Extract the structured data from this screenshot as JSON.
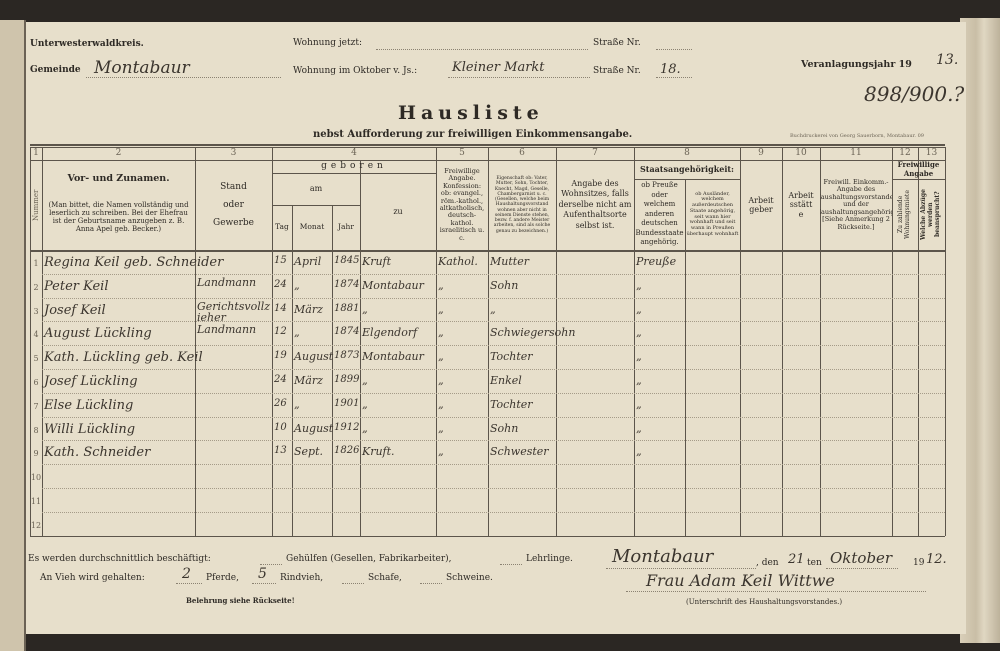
{
  "header": {
    "district": "Unterwesterwaldkreis.",
    "municipality_label": "Gemeinde",
    "municipality_value": "Montabaur",
    "current_residence_label": "Wohnung jetzt:",
    "current_street_label": "Straße Nr.",
    "october_residence_label": "Wohnung im Oktober v. Js.:",
    "october_residence_value": "Kleiner Markt",
    "october_street_label": "Straße Nr.",
    "october_street_value": "18.",
    "assessment_year_label": "Veranlagungsjahr 19",
    "assessment_year_value": "13.",
    "margin_note": "898/900.?",
    "title": "Hausliste",
    "subtitle": "nebst Aufforderung zur freiwilligen Einkommensangabe.",
    "printer": "Buchdruckerei von Georg Sauerborn, Montabaur. 09"
  },
  "columns": {
    "numbers": [
      "1",
      "2",
      "3",
      "4",
      "5",
      "6",
      "7",
      "8",
      "9",
      "10",
      "11",
      "12",
      "13"
    ],
    "c1": "Nummer",
    "c2_title": "Vor- und Zunamen.",
    "c2_note": "(Man bittet, die Namen vollständig und leserlich zu schreiben. Bei der Ehefrau ist der Geburtsname anzugeben z. B. Anna Apel geb. Becker.)",
    "c3": "Stand oder Gewerbe",
    "c4": "geboren",
    "c4_am": "am",
    "c4_tag": "Tag",
    "c4_monat": "Monat",
    "c4_jahr": "Jahr",
    "c4_zu": "zu",
    "c5": "Freiwillige Angabe. Konfession: ob: evangel., röm.-kathol., altkatholisch, deutsch-kathol. israelitisch u. c.",
    "c6": "Eigenschaft ob: Vater, Mutter, Sohn, Tochter, Knecht, Magd, Geselle, Chambergarnist u. c. (Gesellen, welche beim Haushaltungsvorstand wohnen aber nicht in seinem Dienste stehen, bezw. f. andere Meister arbeiten, sind als solche genau zu bezeichnen.)",
    "c7": "Angabe des Wohnsitzes, falls derselbe nicht am Aufenthaltsorte selbst ist.",
    "c8_title": "Staatsangehörigkeit:",
    "c8a": "ob Preuße oder welchem anderen deutschen Bundesstaate angehörig.",
    "c8b": "ob Ausländer, welchem außerdeutschen Staate angehörig, seit wann hier wohnhaft und seit wann in Preußen überhaupt wohnhaft",
    "c9": "Arbeitgeber",
    "c10": "Arbeitsstätte",
    "c11": "Freiwill. Einkomm.-Angabe des Haushaltungsvorstandes und der Haushaltungsangehörig. [Siehe Anmerkung 2 Rückseite.]",
    "c12_13_title": "Freiwillige Angabe",
    "c12": "Zu zahlende Wohnungsmiete",
    "c13": "Welche Abzüge werden beansprucht?"
  },
  "rows": [
    {
      "num": "1",
      "name": "Regina Keil geb. Schneider",
      "stand": "",
      "tag": "15",
      "monat": "April",
      "jahr": "1845",
      "zu": "Kruft",
      "konf": "Kathol.",
      "eigen": "Mutter",
      "staat": "Preuße"
    },
    {
      "num": "2",
      "name": "Peter Keil",
      "stand": "Landmann",
      "tag": "24",
      "monat": "„",
      "jahr": "1874",
      "zu": "Montabaur",
      "konf": "„",
      "eigen": "Sohn",
      "staat": "„"
    },
    {
      "num": "3",
      "name": "Josef Keil",
      "stand": "Gerichtsvollzieher",
      "tag": "14",
      "monat": "März",
      "jahr": "1881",
      "zu": "„",
      "konf": "„",
      "eigen": "„",
      "staat": "„"
    },
    {
      "num": "4",
      "name": "August Lückling",
      "stand": "Landmann",
      "tag": "12",
      "monat": "„",
      "jahr": "1874",
      "zu": "Elgendorf",
      "konf": "„",
      "eigen": "Schwiegersohn",
      "staat": "„"
    },
    {
      "num": "5",
      "name": "Kath. Lückling geb. Keil",
      "stand": "",
      "tag": "19",
      "monat": "August",
      "jahr": "1873",
      "zu": "Montabaur",
      "konf": "„",
      "eigen": "Tochter",
      "staat": "„"
    },
    {
      "num": "6",
      "name": "Josef Lückling",
      "stand": "",
      "tag": "24",
      "monat": "März",
      "jahr": "1899",
      "zu": "„",
      "konf": "„",
      "eigen": "Enkel",
      "staat": "„"
    },
    {
      "num": "7",
      "name": "Else Lückling",
      "stand": "",
      "tag": "26",
      "monat": "„",
      "jahr": "1901",
      "zu": "„",
      "konf": "„",
      "eigen": "Tochter",
      "staat": "„"
    },
    {
      "num": "8",
      "name": "Willi Lückling",
      "stand": "",
      "tag": "10",
      "monat": "August",
      "jahr": "1912",
      "zu": "„",
      "konf": "„",
      "eigen": "Sohn",
      "staat": "„"
    },
    {
      "num": "9",
      "name": "Kath. Schneider",
      "stand": "",
      "tag": "13",
      "monat": "Sept.",
      "jahr": "1826",
      "zu": "Kruft.",
      "konf": "„",
      "eigen": "Schwester",
      "staat": "„"
    },
    {
      "num": "10",
      "name": "",
      "stand": "",
      "tag": "",
      "monat": "",
      "jahr": "",
      "zu": "",
      "konf": "",
      "eigen": "",
      "staat": ""
    },
    {
      "num": "11",
      "name": "",
      "stand": "",
      "tag": "",
      "monat": "",
      "jahr": "",
      "zu": "",
      "konf": "",
      "eigen": "",
      "staat": ""
    },
    {
      "num": "12",
      "name": "",
      "stand": "",
      "tag": "",
      "monat": "",
      "jahr": "",
      "zu": "",
      "konf": "",
      "eigen": "",
      "staat": ""
    }
  ],
  "footer": {
    "employed_label": "Es werden durchschnittlich beschäftigt:",
    "helpers_label": "Gehülfen (Gesellen, Fabrikarbeiter),",
    "apprentices_label": "Lehrlinge.",
    "livestock_label": "An Vieh wird gehalten:",
    "horses_value": "2",
    "horses_label": "Pferde,",
    "cattle_value": "5",
    "cattle_label": "Rindvieh,",
    "sheep_label": "Schafe,",
    "pigs_label": "Schweine.",
    "instruction": "Belehrung siehe Rückseite!",
    "place_value": "Montabaur",
    "date_den": ", den",
    "day_value": "21",
    "date_ten": "ten",
    "month_value": "Oktober",
    "year_prefix": "19",
    "year_value": "12.",
    "signature_value": "Frau Adam Keil Wittwe",
    "signature_label": "(Unterschrift des Haushaltungsvorstandes.)"
  }
}
